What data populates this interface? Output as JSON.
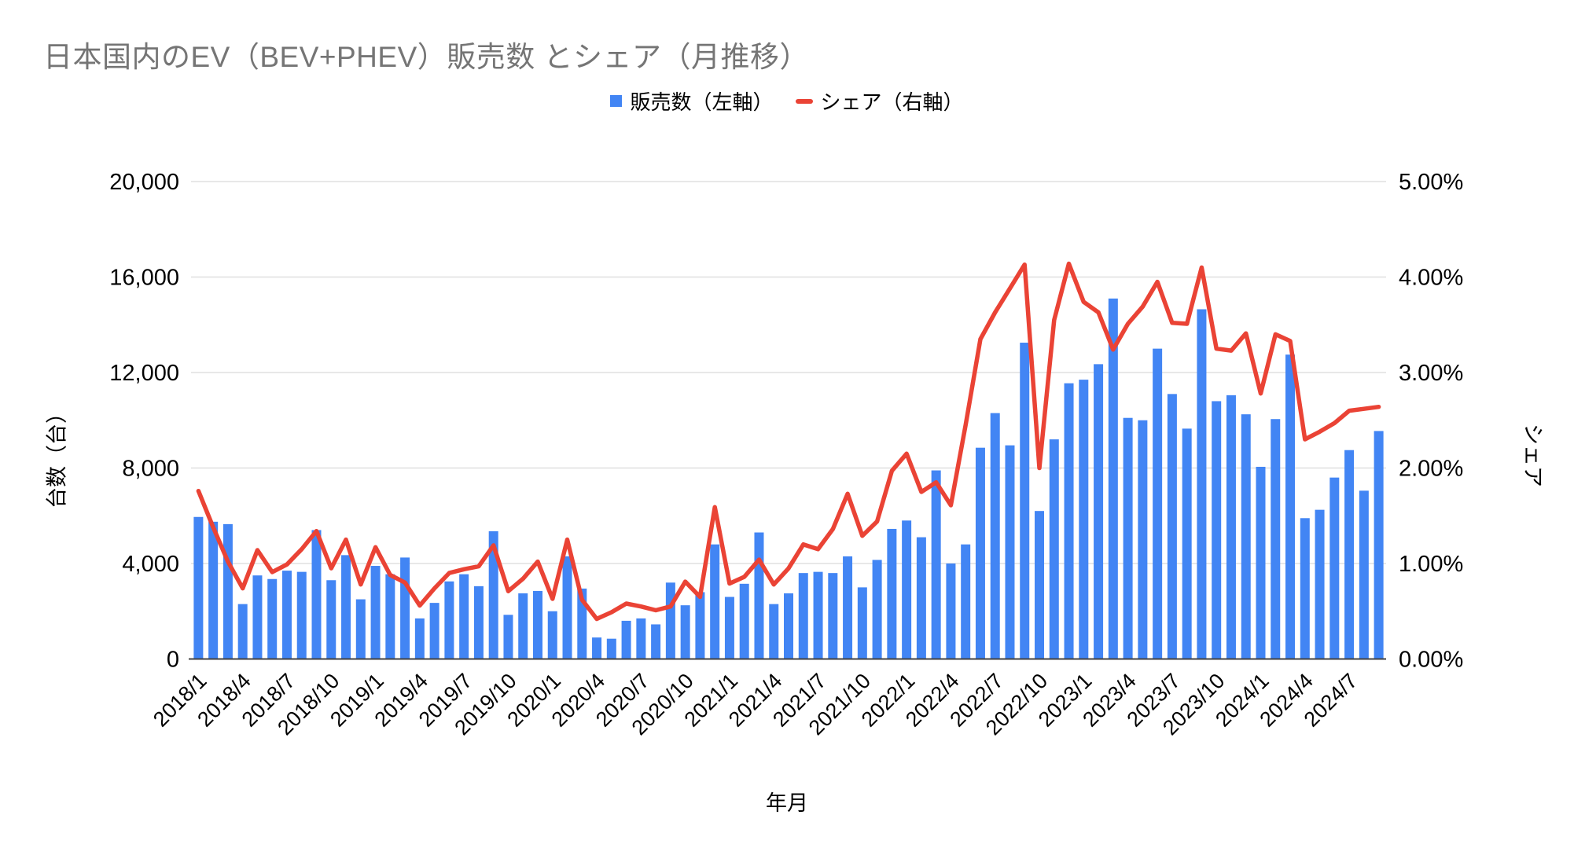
{
  "title": "日本国内のEV（BEV+PHEV）販売数 とシェア（月推移）",
  "legend": {
    "sales_label": "販売数（左軸）",
    "share_label": "シェア（右軸）"
  },
  "axes": {
    "left": {
      "title": "台数（台）",
      "ticks": [
        "0",
        "4,000",
        "8,000",
        "12,000",
        "16,000",
        "20,000"
      ],
      "max": 20000
    },
    "right": {
      "title": "シェア",
      "ticks": [
        "0.00%",
        "1.00%",
        "2.00%",
        "3.00%",
        "4.00%",
        "5.00%"
      ],
      "max": 5
    },
    "x": {
      "title": "年月",
      "tick_every": 3
    }
  },
  "colors": {
    "bar": "#4285F4",
    "line": "#EA4335",
    "title_text": "#757575",
    "grid": "#E0E0E0",
    "axis_line": "#424242",
    "tick_text": "#000000"
  },
  "chart_data": {
    "type": "bar",
    "combo": "bar+line",
    "title": "日本国内のEV（BEV+PHEV）販売数 とシェア（月推移）",
    "xlabel": "年月",
    "ylabel_left": "台数（台）",
    "ylabel_right": "シェア",
    "left_ylim": [
      0,
      20000
    ],
    "right_ylim": [
      0,
      5
    ],
    "grid": "horizontal",
    "legend_position": "top-center",
    "categories": [
      "2018/1",
      "2018/2",
      "2018/3",
      "2018/4",
      "2018/5",
      "2018/6",
      "2018/7",
      "2018/8",
      "2018/9",
      "2018/10",
      "2018/11",
      "2018/12",
      "2019/1",
      "2019/2",
      "2019/3",
      "2019/4",
      "2019/5",
      "2019/6",
      "2019/7",
      "2019/8",
      "2019/9",
      "2019/10",
      "2019/11",
      "2019/12",
      "2020/1",
      "2020/2",
      "2020/3",
      "2020/4",
      "2020/5",
      "2020/6",
      "2020/7",
      "2020/8",
      "2020/9",
      "2020/10",
      "2020/11",
      "2020/12",
      "2021/1",
      "2021/2",
      "2021/3",
      "2021/4",
      "2021/5",
      "2021/6",
      "2021/7",
      "2021/8",
      "2021/9",
      "2021/10",
      "2021/11",
      "2021/12",
      "2022/1",
      "2022/2",
      "2022/3",
      "2022/4",
      "2022/5",
      "2022/6",
      "2022/7",
      "2022/8",
      "2022/9",
      "2022/10",
      "2022/11",
      "2022/12",
      "2023/1",
      "2023/2",
      "2023/3",
      "2023/4",
      "2023/5",
      "2023/6",
      "2023/7",
      "2023/8",
      "2023/9",
      "2023/10",
      "2023/11",
      "2023/12",
      "2024/1",
      "2024/2",
      "2024/3",
      "2024/4",
      "2024/5",
      "2024/6",
      "2024/7",
      "2024/8",
      "2024/9"
    ],
    "series": [
      {
        "name": "販売数（左軸）",
        "type": "bar",
        "axis": "left",
        "values": [
          5950,
          5750,
          5650,
          2300,
          3500,
          3350,
          3700,
          3650,
          5400,
          3300,
          4350,
          2500,
          3900,
          3550,
          4250,
          1700,
          2350,
          3250,
          3550,
          3050,
          5350,
          1850,
          2750,
          2850,
          2000,
          4300,
          2950,
          900,
          850,
          1600,
          1700,
          1450,
          3200,
          2250,
          2800,
          4800,
          2600,
          3150,
          5300,
          2300,
          2750,
          3600,
          3650,
          3600,
          4300,
          3000,
          4150,
          5450,
          5800,
          5100,
          7900,
          4000,
          4800,
          8850,
          10300,
          8950,
          13250,
          6200,
          9200,
          11550,
          11700,
          12350,
          15100,
          10100,
          10000,
          13000,
          11100,
          9650,
          14650,
          10800,
          11050,
          10250,
          8050,
          10050,
          12750,
          5900,
          6250,
          7600,
          8750,
          7050,
          9550
        ]
      },
      {
        "name": "シェア（右軸）",
        "type": "line",
        "axis": "right",
        "values": [
          1.76,
          1.38,
          1.02,
          0.74,
          1.14,
          0.91,
          0.99,
          1.15,
          1.34,
          0.95,
          1.25,
          0.78,
          1.17,
          0.88,
          0.8,
          0.56,
          0.74,
          0.9,
          0.94,
          0.97,
          1.19,
          0.71,
          0.84,
          1.02,
          0.63,
          1.25,
          0.62,
          0.42,
          0.49,
          0.58,
          0.55,
          0.51,
          0.55,
          0.81,
          0.65,
          1.59,
          0.79,
          0.86,
          1.04,
          0.78,
          0.95,
          1.2,
          1.15,
          1.36,
          1.73,
          1.29,
          1.44,
          1.97,
          2.15,
          1.75,
          1.85,
          1.61,
          2.45,
          3.35,
          3.63,
          3.88,
          4.13,
          2.0,
          3.55,
          4.14,
          3.74,
          3.63,
          3.24,
          3.51,
          3.69,
          3.95,
          3.52,
          3.51,
          4.1,
          3.25,
          3.23,
          3.41,
          2.78,
          3.4,
          3.33,
          2.3,
          2.38,
          2.47,
          2.6,
          2.62,
          2.64
        ]
      }
    ]
  }
}
